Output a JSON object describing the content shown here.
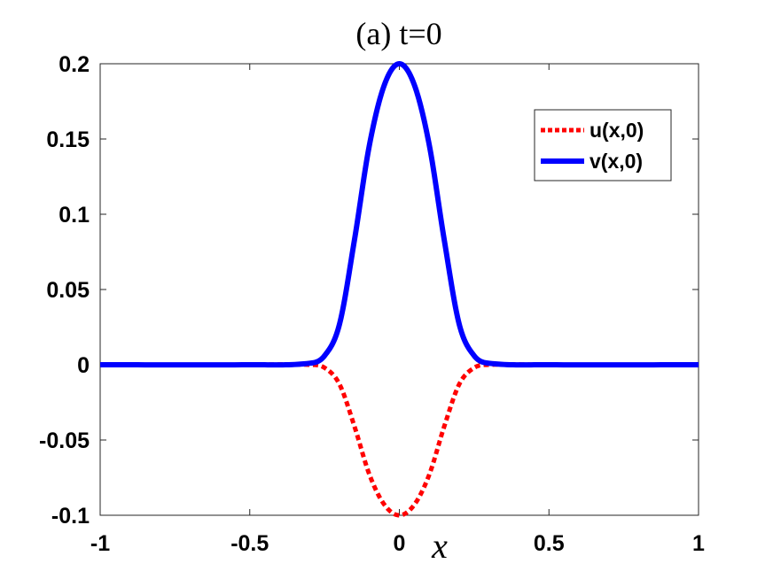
{
  "chart_data": {
    "type": "line",
    "title": "(a) t=0",
    "xlabel": "x",
    "ylabel": "",
    "xlim": [
      -1,
      1
    ],
    "ylim": [
      -0.1,
      0.2
    ],
    "xticks": [
      "-1",
      "-0.5",
      "0",
      "0.5",
      "1"
    ],
    "yticks": [
      "-0.1",
      "-0.05",
      "0",
      "0.05",
      "0.1",
      "0.15",
      "0.2"
    ],
    "grid": false,
    "legend_position": "top-right",
    "x": [
      -1.0,
      -0.5,
      -0.3,
      -0.25,
      -0.2,
      -0.15,
      -0.1,
      -0.05,
      0.0,
      0.05,
      0.1,
      0.15,
      0.2,
      0.25,
      0.3,
      0.5,
      1.0
    ],
    "series": [
      {
        "name": "u(x,0)",
        "color": "#ff0000",
        "style": "dotted",
        "values": [
          0,
          0,
          0,
          -0.002,
          -0.013,
          -0.041,
          -0.073,
          -0.093,
          -0.1,
          -0.093,
          -0.073,
          -0.041,
          -0.013,
          -0.002,
          0,
          0,
          0
        ]
      },
      {
        "name": "v(x,0)",
        "color": "#0000ff",
        "style": "solid",
        "values": [
          0,
          0,
          0.001,
          0.006,
          0.027,
          0.083,
          0.146,
          0.186,
          0.2,
          0.186,
          0.146,
          0.083,
          0.027,
          0.006,
          0.001,
          0,
          0
        ]
      }
    ]
  }
}
